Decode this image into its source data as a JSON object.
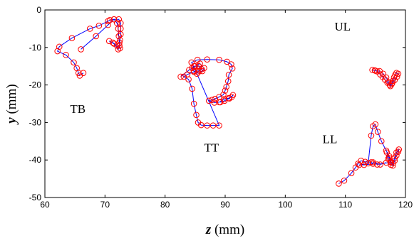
{
  "chart_data": {
    "type": "scatter",
    "title": "",
    "xlabel_var": "z",
    "xlabel_unit": " (mm)",
    "ylabel_var": "y",
    "ylabel_unit": " (mm)",
    "xlim": [
      60,
      120
    ],
    "ylim": [
      -50,
      0
    ],
    "xticks": [
      60,
      70,
      80,
      90,
      100,
      110,
      120
    ],
    "yticks": [
      0,
      -10,
      -20,
      -30,
      -40,
      -50
    ],
    "xtick_labels": [
      "60",
      "70",
      "80",
      "90",
      "100",
      "110",
      "120"
    ],
    "ytick_labels": [
      "0",
      "-10",
      "-20",
      "-30",
      "-40",
      "-50"
    ],
    "grid": false,
    "line_color": "#0000ff",
    "marker_color": "#ff0000",
    "annotations": [
      {
        "text": "TB",
        "x": 64.2,
        "y": -27.5
      },
      {
        "text": "TT",
        "x": 86.5,
        "y": -37.8
      },
      {
        "text": "UL",
        "x": 108.2,
        "y": -5.5
      },
      {
        "text": "LL",
        "x": 106.2,
        "y": -35.5
      }
    ],
    "series": [
      {
        "label": "TB",
        "points": [
          [
            66,
            -10.5
          ],
          [
            68.5,
            -7
          ],
          [
            70.5,
            -4
          ],
          [
            71.5,
            -2.5
          ],
          [
            72.3,
            -2.5
          ],
          [
            72.6,
            -3.5
          ],
          [
            72.6,
            -5
          ],
          [
            72.6,
            -6.5
          ],
          [
            72.5,
            -8
          ],
          [
            72.4,
            -9.5
          ],
          [
            72.2,
            -10.5
          ],
          [
            71.5,
            -9
          ],
          [
            70.7,
            -8.3
          ],
          [
            71.3,
            -8.7
          ],
          [
            72,
            -9.5
          ],
          [
            72.5,
            -10.2
          ],
          [
            72.4,
            -8.7
          ],
          [
            72.3,
            -7
          ],
          [
            72.2,
            -5
          ],
          [
            72,
            -3.5
          ],
          [
            71.5,
            -2.5
          ],
          [
            70.8,
            -2.7
          ],
          [
            70.5,
            -3
          ],
          [
            69,
            -4.2
          ],
          [
            67.5,
            -5
          ],
          [
            64.5,
            -7.5
          ],
          [
            62.4,
            -9.8
          ],
          [
            62.1,
            -11
          ],
          [
            63.5,
            -12
          ],
          [
            64.8,
            -14
          ],
          [
            65.3,
            -15.5
          ],
          [
            65.6,
            -16.8
          ],
          [
            65.8,
            -17.5
          ],
          [
            66.4,
            -16.8
          ]
        ]
      },
      {
        "label": "TT",
        "points": [
          [
            82.6,
            -17.8
          ],
          [
            84,
            -16
          ],
          [
            85,
            -15
          ],
          [
            85.8,
            -14.3
          ],
          [
            86.5,
            -15.5
          ],
          [
            86.2,
            -16.3
          ],
          [
            85.5,
            -16.6
          ],
          [
            84.8,
            -16.3
          ],
          [
            84.5,
            -15.5
          ],
          [
            84.8,
            -15
          ],
          [
            85.6,
            -15
          ],
          [
            86.1,
            -15.8
          ],
          [
            85.7,
            -16.2
          ],
          [
            84.8,
            -16.5
          ],
          [
            83.7,
            -17.2
          ],
          [
            83.1,
            -17.8
          ],
          [
            83.9,
            -18.5
          ],
          [
            84.5,
            -21
          ],
          [
            84.8,
            -25
          ],
          [
            85.2,
            -28
          ],
          [
            85.5,
            -30
          ],
          [
            86,
            -30.7
          ],
          [
            87,
            -30.8
          ],
          [
            88,
            -30.8
          ],
          [
            89,
            -30.8
          ],
          [
            85.3,
            -17
          ],
          [
            84.4,
            -14
          ],
          [
            85.4,
            -13.3
          ],
          [
            87,
            -13.2
          ],
          [
            89,
            -13.3
          ],
          [
            90.3,
            -13.8
          ],
          [
            91,
            -14.5
          ],
          [
            91.2,
            -15.6
          ],
          [
            90.6,
            -17.3
          ],
          [
            90.5,
            -19
          ],
          [
            90.2,
            -20.5
          ],
          [
            90,
            -21.5
          ],
          [
            89.7,
            -22.6
          ],
          [
            89,
            -23.2
          ],
          [
            88.3,
            -23.7
          ],
          [
            87.8,
            -24
          ],
          [
            87.3,
            -24.2
          ],
          [
            88.2,
            -24.7
          ],
          [
            89,
            -24.6
          ],
          [
            89.8,
            -23.8
          ],
          [
            90.6,
            -23.5
          ],
          [
            91.1,
            -23.2
          ],
          [
            91.3,
            -22.7
          ],
          [
            90.7,
            -23.6
          ],
          [
            89.9,
            -24.2
          ],
          [
            89.2,
            -24.6
          ]
        ]
      },
      {
        "label": "UL",
        "points": [
          [
            114.5,
            -16
          ],
          [
            115,
            -16.2
          ],
          [
            115.7,
            -16.3
          ],
          [
            116.3,
            -17
          ],
          [
            116.8,
            -18
          ],
          [
            117.2,
            -19.2
          ],
          [
            117.5,
            -20.3
          ],
          [
            117.7,
            -19.8
          ],
          [
            117.9,
            -18.9
          ],
          [
            118.1,
            -18
          ],
          [
            118.3,
            -17.3
          ],
          [
            118.5,
            -16.8
          ],
          [
            118.8,
            -17
          ],
          [
            118.6,
            -17.8
          ],
          [
            118.2,
            -18.7
          ],
          [
            117.8,
            -19.5
          ],
          [
            117.4,
            -20
          ],
          [
            117,
            -19.4
          ],
          [
            116.6,
            -18.6
          ],
          [
            116.2,
            -17.9
          ],
          [
            115.8,
            -17.2
          ],
          [
            115.3,
            -16.4
          ],
          [
            114.9,
            -16.1
          ]
        ]
      },
      {
        "label": "LL",
        "points": [
          [
            108.9,
            -46.3
          ],
          [
            109.8,
            -45.5
          ],
          [
            111,
            -43.5
          ],
          [
            111.7,
            -42
          ],
          [
            112.1,
            -41
          ],
          [
            112.6,
            -40.2
          ],
          [
            113.3,
            -40.5
          ],
          [
            114.3,
            -40.6
          ],
          [
            114.6,
            -41
          ],
          [
            113.1,
            -41.3
          ],
          [
            112.3,
            -41.3
          ],
          [
            113.8,
            -40.9
          ],
          [
            114.3,
            -33.5
          ],
          [
            114.6,
            -31
          ],
          [
            115,
            -30.5
          ],
          [
            115.4,
            -32.5
          ],
          [
            116,
            -35
          ],
          [
            116.8,
            -37.5
          ],
          [
            117.3,
            -39
          ],
          [
            117.6,
            -40.5
          ],
          [
            117.9,
            -41.5
          ],
          [
            118.2,
            -40.2
          ],
          [
            118.5,
            -38.8
          ],
          [
            118.8,
            -37.8
          ],
          [
            118.9,
            -37.2
          ],
          [
            118.5,
            -38
          ],
          [
            118.2,
            -39.5
          ],
          [
            117.9,
            -40.8
          ],
          [
            117.6,
            -41.3
          ],
          [
            117.3,
            -39.5
          ],
          [
            116.9,
            -38
          ],
          [
            117.1,
            -39.7
          ],
          [
            117.5,
            -40.6
          ],
          [
            115.3,
            -41.2
          ],
          [
            114.6,
            -40.6
          ],
          [
            115.8,
            -41.2
          ],
          [
            116.8,
            -40.7
          ]
        ]
      }
    ]
  }
}
